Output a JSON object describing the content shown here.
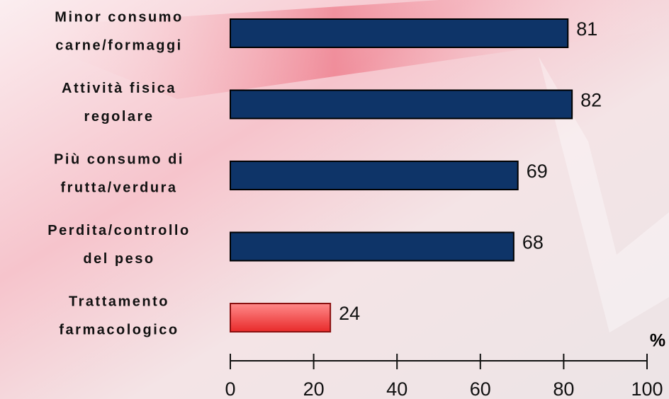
{
  "chart_data": {
    "type": "bar",
    "orientation": "horizontal",
    "categories": [
      [
        "Minor consumo",
        "carne/formaggi"
      ],
      [
        "Attività fisica",
        "regolare"
      ],
      [
        "Più consumo di",
        "frutta/verdura"
      ],
      [
        "Perdita/controllo",
        "del peso"
      ],
      [
        "Trattamento",
        "farmacologico"
      ]
    ],
    "values": [
      81,
      82,
      69,
      68,
      24
    ],
    "colors": [
      "#0e3468",
      "#0e3468",
      "#0e3468",
      "#0e3468",
      "#f24a4a"
    ],
    "xlabel": "%",
    "xlim": [
      0,
      100
    ],
    "xticks": [
      0,
      20,
      40,
      60,
      80,
      100
    ],
    "grid": false
  }
}
